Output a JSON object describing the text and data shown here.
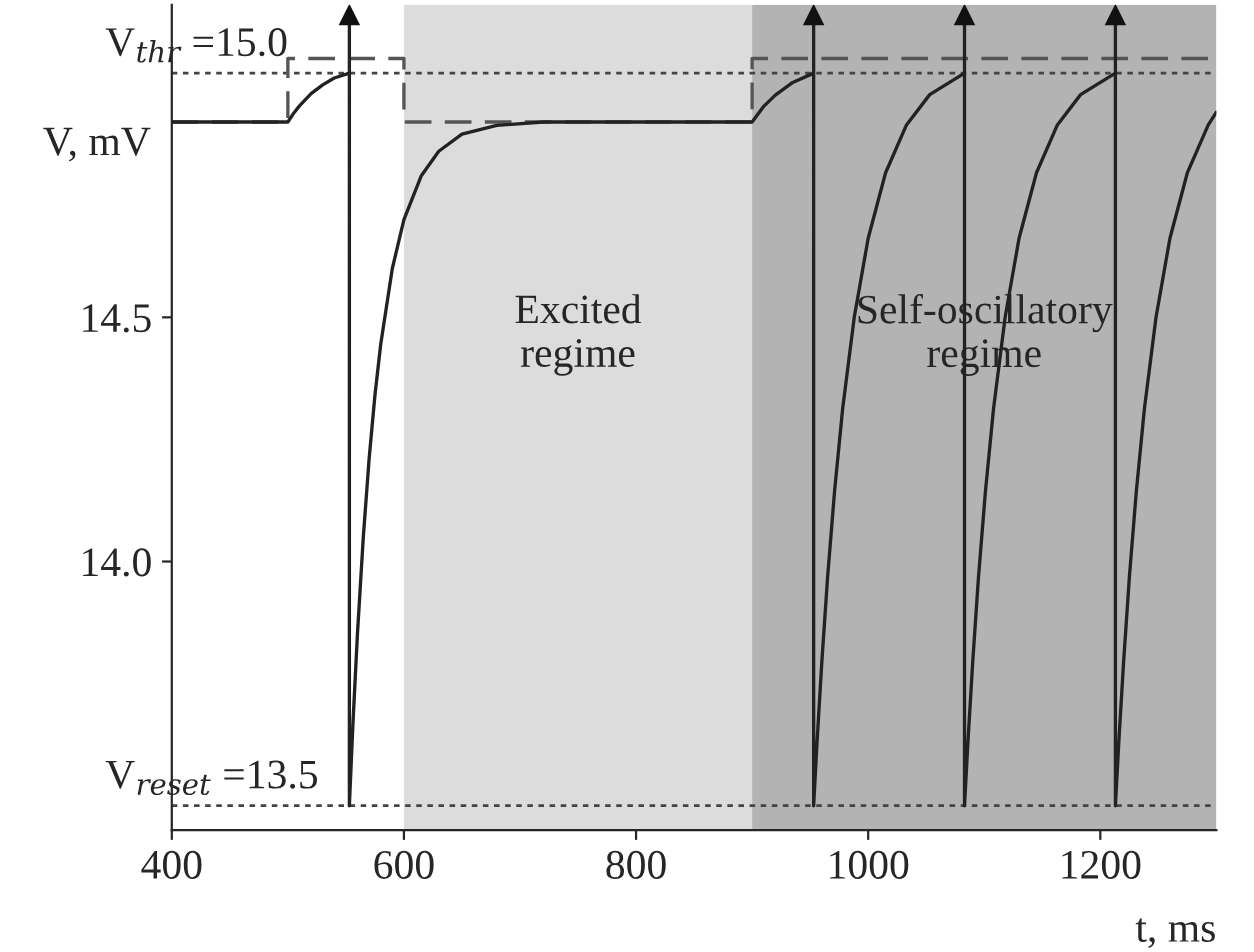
{
  "chart_data": {
    "type": "line",
    "xlabel": "t, ms",
    "ylabel": "V, mV",
    "xlim": [
      400,
      1300
    ],
    "ylim": [
      13.45,
      15.14
    ],
    "xticks": [
      400,
      600,
      800,
      1000,
      1200
    ],
    "yticks": [
      {
        "value": 14.0,
        "label": "14.0"
      },
      {
        "value": 14.5,
        "label": "14.5"
      }
    ],
    "grid": false,
    "series": [
      {
        "color": "#555555",
        "line_style": "dashed",
        "x": [
          400,
          500,
          500,
          600,
          600,
          900,
          900,
          1300
        ],
        "values": [
          14.9,
          14.9,
          15.03,
          15.03,
          14.9,
          14.9,
          15.03,
          15.03
        ]
      },
      {
        "color": "#222222",
        "line_style": "solid",
        "x": [
          400,
          500,
          505,
          510,
          520,
          530,
          540,
          553,
          553,
          553,
          556,
          560,
          565,
          570,
          575,
          580,
          590,
          600,
          615,
          630,
          650,
          680,
          720,
          900,
          910,
          920,
          935,
          953,
          953,
          953,
          956,
          960,
          965,
          971,
          978,
          988,
          1000,
          1015,
          1033,
          1053,
          1083,
          1083,
          1083,
          1086,
          1090,
          1095,
          1101,
          1108,
          1118,
          1130,
          1145,
          1163,
          1183,
          1213,
          1213,
          1213,
          1216,
          1220,
          1225,
          1231,
          1238,
          1248,
          1260,
          1275,
          1293,
          1300
        ],
        "values": [
          14.9,
          14.9,
          14.918,
          14.933,
          14.958,
          14.976,
          14.99,
          15.0,
          15.12,
          13.5,
          13.665,
          13.854,
          14.05,
          14.21,
          14.34,
          14.445,
          14.6,
          14.7,
          14.79,
          14.84,
          14.875,
          14.893,
          14.9,
          14.9,
          14.932,
          14.955,
          14.981,
          15.0,
          15.12,
          13.5,
          13.633,
          13.792,
          13.967,
          14.143,
          14.313,
          14.5,
          14.662,
          14.796,
          14.894,
          14.956,
          15.0,
          15.12,
          13.5,
          13.633,
          13.792,
          13.967,
          14.143,
          14.313,
          14.5,
          14.662,
          14.796,
          14.894,
          14.956,
          15.0,
          15.12,
          13.5,
          13.633,
          13.792,
          13.967,
          14.143,
          14.313,
          14.5,
          14.662,
          14.796,
          14.894,
          14.92
        ]
      },
      {
        "type": "scatter",
        "color": "#111111",
        "marker": "triangle",
        "x": [
          553,
          953,
          1083,
          1213
        ],
        "values": [
          15.12,
          15.12,
          15.12,
          15.12
        ]
      }
    ],
    "ref_lines": [
      {
        "axis": "y",
        "value": 15.0,
        "label": "V$_{thr}$ =15.0",
        "color": "#444444",
        "line_style": "dotted"
      },
      {
        "axis": "y",
        "value": 13.5,
        "label": "V$_{reset}$ =13.5",
        "color": "#444444",
        "line_style": "dotted"
      }
    ],
    "bands": [
      {
        "axis": "x",
        "from": 600,
        "to": 900,
        "label": "Excited\nregime",
        "color": "#dcdcdc"
      },
      {
        "axis": "x",
        "from": 900,
        "to": 1300,
        "label": "Self-oscillatory\nregime",
        "color": "#b3b3b3"
      }
    ]
  }
}
